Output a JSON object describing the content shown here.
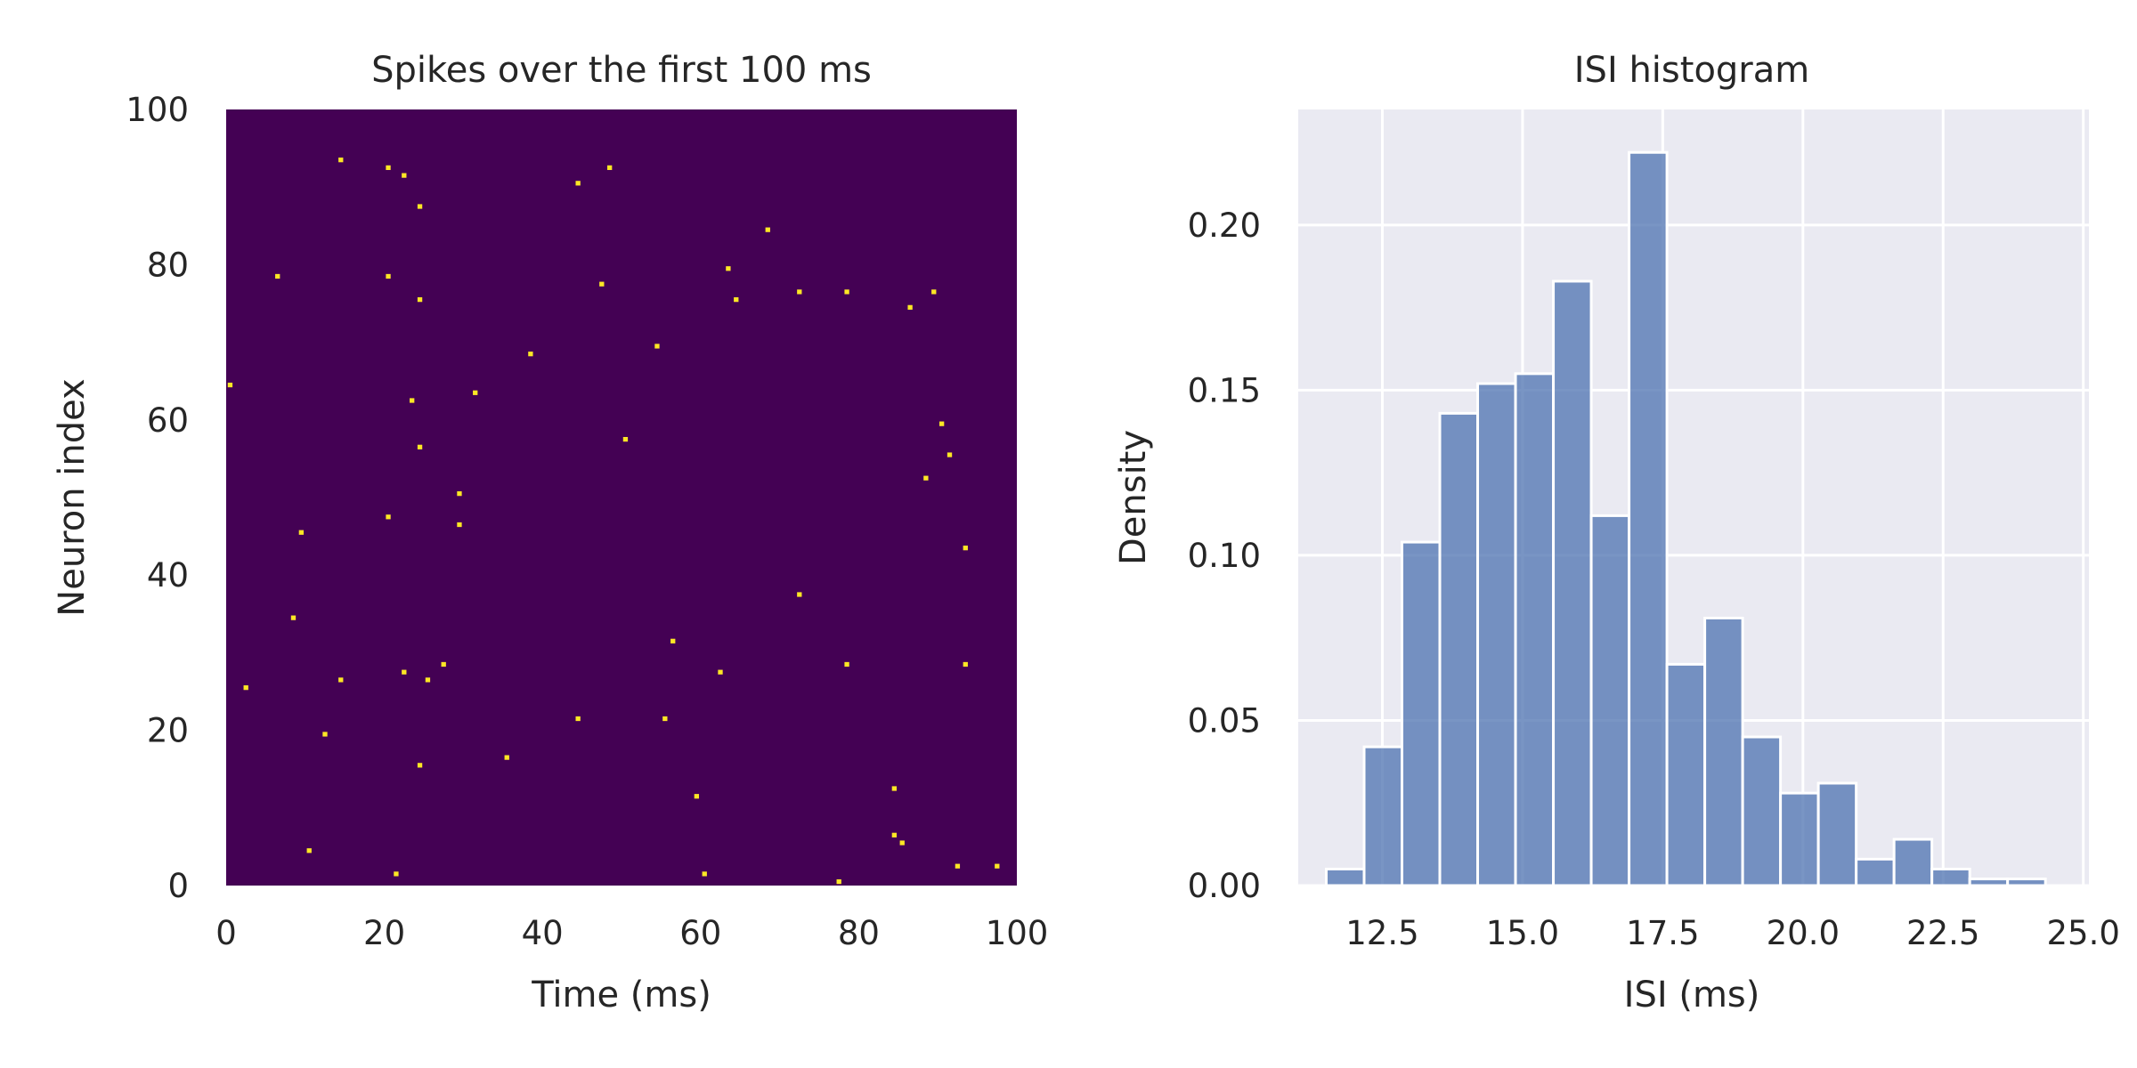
{
  "colors": {
    "raster_background": "#440154",
    "raster_spike": "#fde725",
    "hist_background": "#eaeaf2",
    "hist_grid": "#ffffff",
    "hist_bar": "#4c72b0",
    "text": "#262626"
  },
  "chart_data": [
    {
      "type": "heatmap",
      "title": "Spikes over the first 100 ms",
      "xlabel": "Time (ms)",
      "ylabel": "Neuron index",
      "xlim": [
        0,
        100
      ],
      "ylim": [
        0,
        100
      ],
      "xticks": [
        "0",
        "20",
        "40",
        "60",
        "80",
        "100"
      ],
      "yticks": [
        "0",
        "20",
        "40",
        "60",
        "80",
        "100"
      ],
      "grid": false,
      "colormap": "viridis",
      "spikes": [
        [
          0,
          64
        ],
        [
          2,
          25
        ],
        [
          6,
          78
        ],
        [
          8,
          34
        ],
        [
          9,
          45
        ],
        [
          10,
          4
        ],
        [
          12,
          19
        ],
        [
          14,
          93
        ],
        [
          14,
          26
        ],
        [
          20,
          92
        ],
        [
          20,
          78
        ],
        [
          20,
          47
        ],
        [
          21,
          1
        ],
        [
          22,
          91
        ],
        [
          22,
          27
        ],
        [
          23,
          62
        ],
        [
          24,
          87
        ],
        [
          24,
          75
        ],
        [
          24,
          56
        ],
        [
          24,
          15
        ],
        [
          25,
          26
        ],
        [
          27,
          28
        ],
        [
          29,
          50
        ],
        [
          29,
          46
        ],
        [
          31,
          63
        ],
        [
          35,
          16
        ],
        [
          38,
          68
        ],
        [
          44,
          90
        ],
        [
          44,
          21
        ],
        [
          47,
          77
        ],
        [
          48,
          92
        ],
        [
          50,
          57
        ],
        [
          54,
          69
        ],
        [
          55,
          21
        ],
        [
          56,
          31
        ],
        [
          59,
          11
        ],
        [
          60,
          1
        ],
        [
          62,
          27
        ],
        [
          63,
          79
        ],
        [
          64,
          75
        ],
        [
          68,
          84
        ],
        [
          72,
          76
        ],
        [
          72,
          37
        ],
        [
          77,
          0
        ],
        [
          78,
          76
        ],
        [
          78,
          28
        ],
        [
          84,
          12
        ],
        [
          84,
          6
        ],
        [
          85,
          5
        ],
        [
          86,
          74
        ],
        [
          88,
          52
        ],
        [
          89,
          76
        ],
        [
          90,
          59
        ],
        [
          91,
          55
        ],
        [
          92,
          2
        ],
        [
          93,
          43
        ],
        [
          93,
          28
        ],
        [
          97,
          2
        ]
      ]
    },
    {
      "type": "bar",
      "title": "ISI histogram",
      "xlabel": "ISI (ms)",
      "ylabel": "Density",
      "xlim": [
        11.0,
        25.1
      ],
      "ylim": [
        0,
        0.235
      ],
      "xticks": [
        12.5,
        15.0,
        17.5,
        20.0,
        22.5,
        25.0
      ],
      "xtick_labels": [
        "12.5",
        "15.0",
        "17.5",
        "20.0",
        "22.5",
        "25.0"
      ],
      "yticks": [
        0.0,
        0.05,
        0.1,
        0.15,
        0.2
      ],
      "ytick_labels": [
        "0.00",
        "0.05",
        "0.10",
        "0.15",
        "0.20"
      ],
      "grid": true,
      "bin_start": 11.5,
      "bin_width": 0.675,
      "values": [
        0.005,
        0.042,
        0.104,
        0.143,
        0.152,
        0.155,
        0.183,
        0.112,
        0.222,
        0.067,
        0.081,
        0.045,
        0.028,
        0.031,
        0.008,
        0.014,
        0.005,
        0.002,
        0.002
      ]
    }
  ]
}
